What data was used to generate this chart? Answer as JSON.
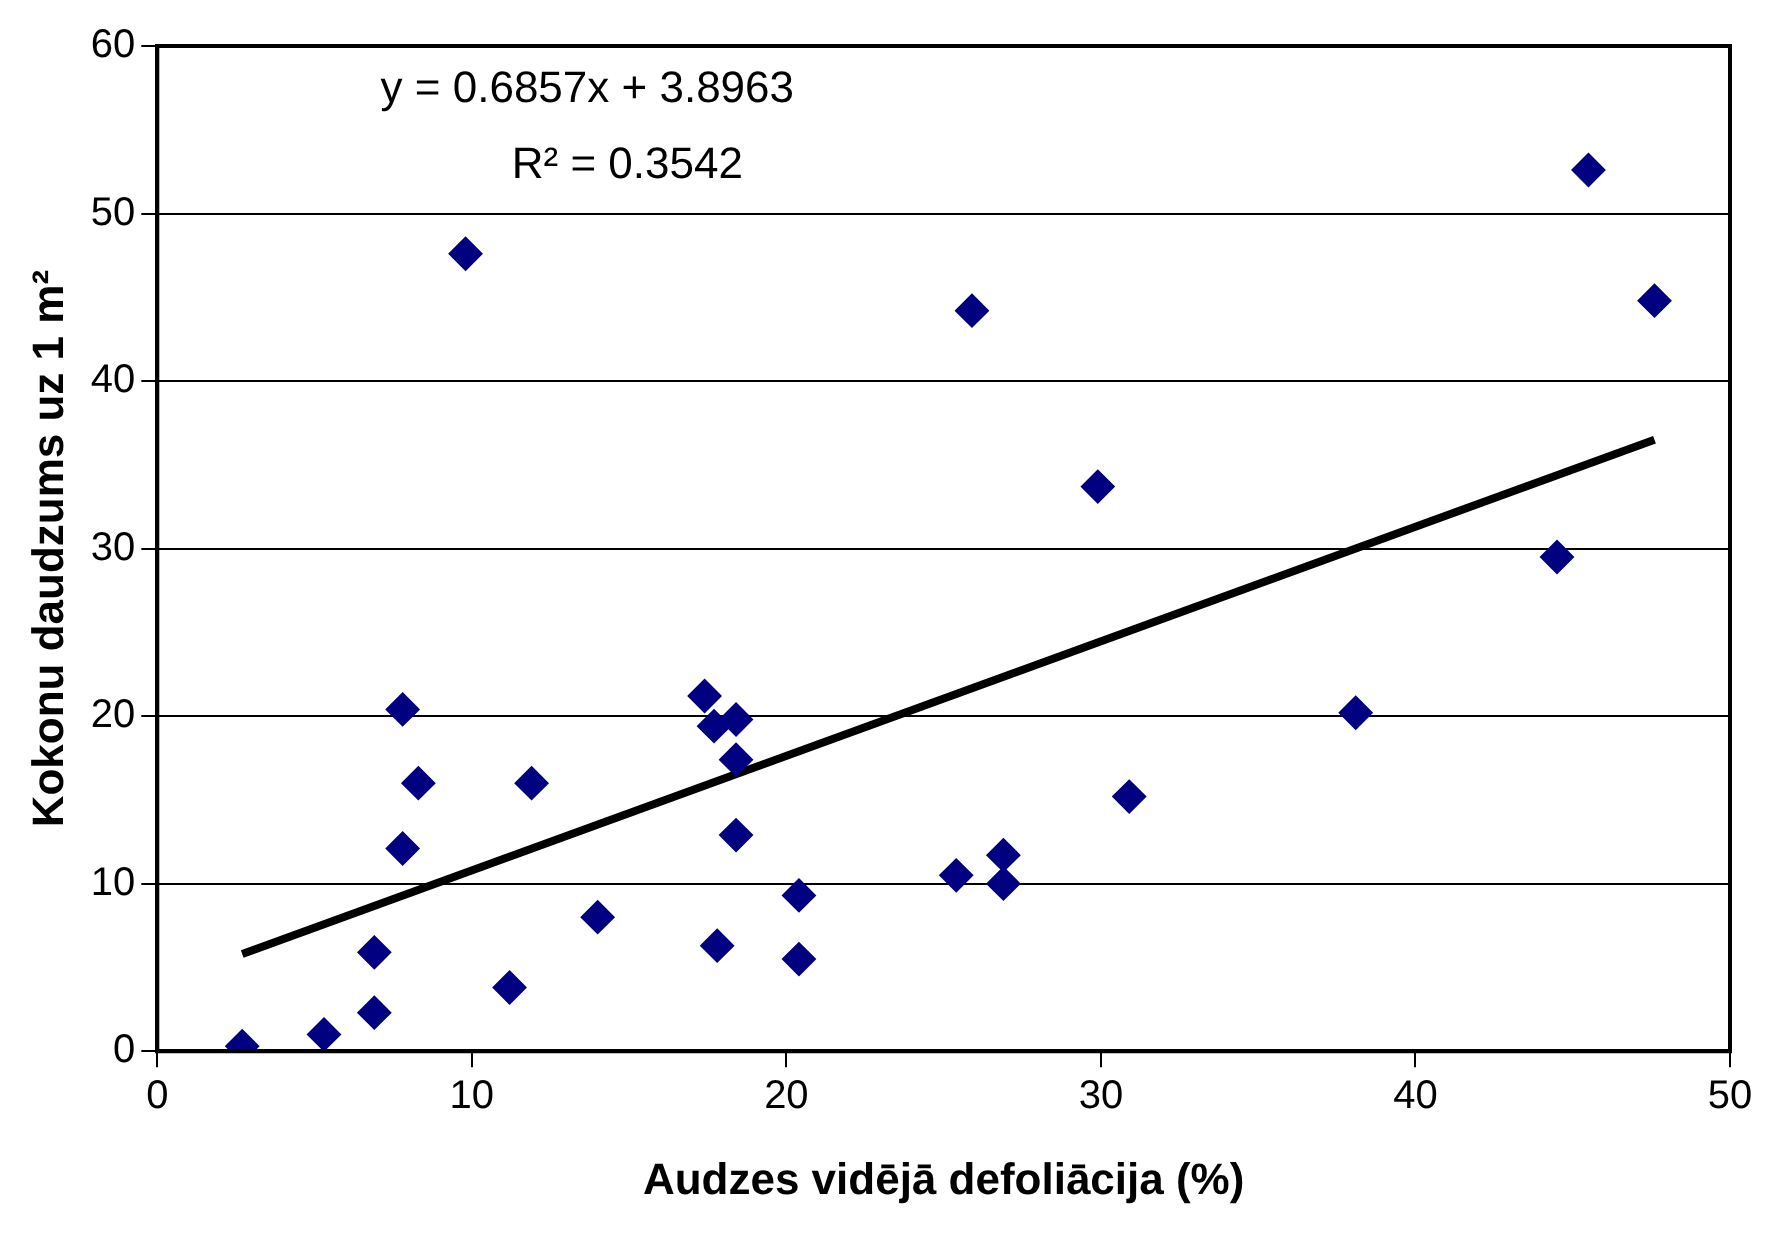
{
  "chart_data": {
    "type": "scatter",
    "xlabel": "Audzes vidējā defoliācija (%)",
    "ylabel": "Kokonu daudzums uz 1 m²",
    "xlim": [
      0,
      50
    ],
    "xticks": [
      0,
      10,
      20,
      30,
      40,
      50
    ],
    "ylim": [
      0,
      60
    ],
    "yticks": [
      0,
      10,
      20,
      30,
      40,
      50,
      60
    ],
    "grid": "y",
    "annotations": [
      "y = 0.6857x + 3.8963",
      "R² = 0.3542"
    ],
    "series": [
      {
        "marker": "diamond",
        "color": "#000080",
        "x": [
          2.7,
          5.3,
          6.9,
          6.9,
          7.8,
          7.8,
          8.3,
          9.8,
          11.9,
          11.2,
          14.0,
          17.4,
          17.7,
          18.4,
          18.4,
          18.4,
          17.8,
          20.4,
          20.4,
          25.4,
          25.9,
          26.9,
          26.9,
          29.9,
          30.9,
          38.1,
          44.5,
          45.5,
          47.6
        ],
        "values": [
          0.3,
          1.0,
          2.3,
          5.9,
          12.1,
          20.4,
          16.0,
          47.6,
          16.0,
          3.8,
          8.0,
          21.2,
          19.4,
          19.8,
          17.4,
          12.9,
          6.3,
          9.3,
          5.5,
          10.5,
          44.2,
          11.7,
          10.0,
          33.7,
          15.2,
          20.2,
          29.5,
          52.6,
          44.8
        ]
      },
      {
        "type": "line",
        "marker": "none",
        "color": "#000000",
        "x": [
          2.7,
          47.6
        ],
        "values": [
          5.8,
          36.5
        ]
      }
    ]
  }
}
